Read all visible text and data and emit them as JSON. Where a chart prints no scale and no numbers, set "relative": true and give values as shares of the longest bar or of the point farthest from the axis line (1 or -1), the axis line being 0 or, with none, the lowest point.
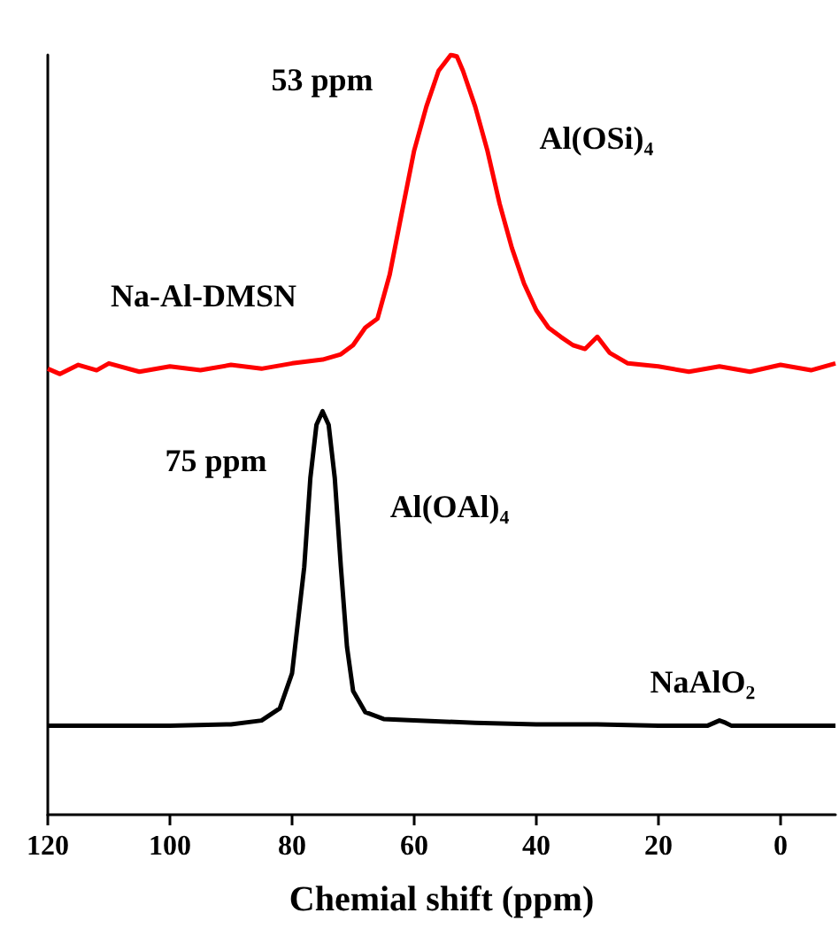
{
  "chart_data": {
    "type": "line",
    "relative": true,
    "xlabel": "Chemial shift (ppm)",
    "xlim": [
      120,
      -9
    ],
    "xticks": [
      120,
      100,
      80,
      60,
      40,
      20,
      0
    ],
    "grid": false,
    "legend": false,
    "marker": "none",
    "line_style": "solid",
    "series": [
      {
        "name": "Na-Al-DMSN",
        "color": "#ff0000",
        "x": [
          120,
          118,
          115,
          112,
          110,
          105,
          100,
          95,
          90,
          85,
          80,
          75,
          72,
          70,
          68,
          66,
          64,
          62,
          60,
          58,
          56,
          54,
          53,
          52,
          50,
          48,
          46,
          44,
          42,
          40,
          38,
          36,
          34,
          32,
          30,
          28,
          25,
          20,
          15,
          10,
          5,
          0,
          -5,
          -9
        ],
        "values": [
          0.587,
          0.58,
          0.592,
          0.585,
          0.594,
          0.583,
          0.59,
          0.585,
          0.592,
          0.587,
          0.594,
          0.599,
          0.606,
          0.618,
          0.641,
          0.653,
          0.711,
          0.793,
          0.874,
          0.932,
          0.979,
          1,
          0.998,
          0.979,
          0.932,
          0.874,
          0.804,
          0.746,
          0.699,
          0.664,
          0.641,
          0.629,
          0.618,
          0.613,
          0.629,
          0.608,
          0.594,
          0.59,
          0.583,
          0.59,
          0.583,
          0.592,
          0.585,
          0.594
        ]
      },
      {
        "name": "NaAlO₂",
        "color": "#000000",
        "x": [
          120,
          100,
          90,
          85,
          82,
          80,
          78,
          77,
          76,
          75,
          74,
          73,
          72,
          71,
          70,
          68,
          65,
          60,
          50,
          40,
          30,
          20,
          12,
          10,
          9,
          8,
          0,
          -9
        ],
        "values": [
          0.117,
          0.117,
          0.119,
          0.124,
          0.14,
          0.186,
          0.326,
          0.443,
          0.513,
          0.531,
          0.513,
          0.443,
          0.326,
          0.221,
          0.163,
          0.135,
          0.126,
          0.124,
          0.121,
          0.119,
          0.119,
          0.117,
          0.117,
          0.124,
          0.121,
          0.117,
          0.117,
          0.117
        ]
      }
    ],
    "annotations": [
      "53 ppm",
      "Al(OSi)₄",
      "75 ppm",
      "Al(OAl)₄"
    ]
  }
}
